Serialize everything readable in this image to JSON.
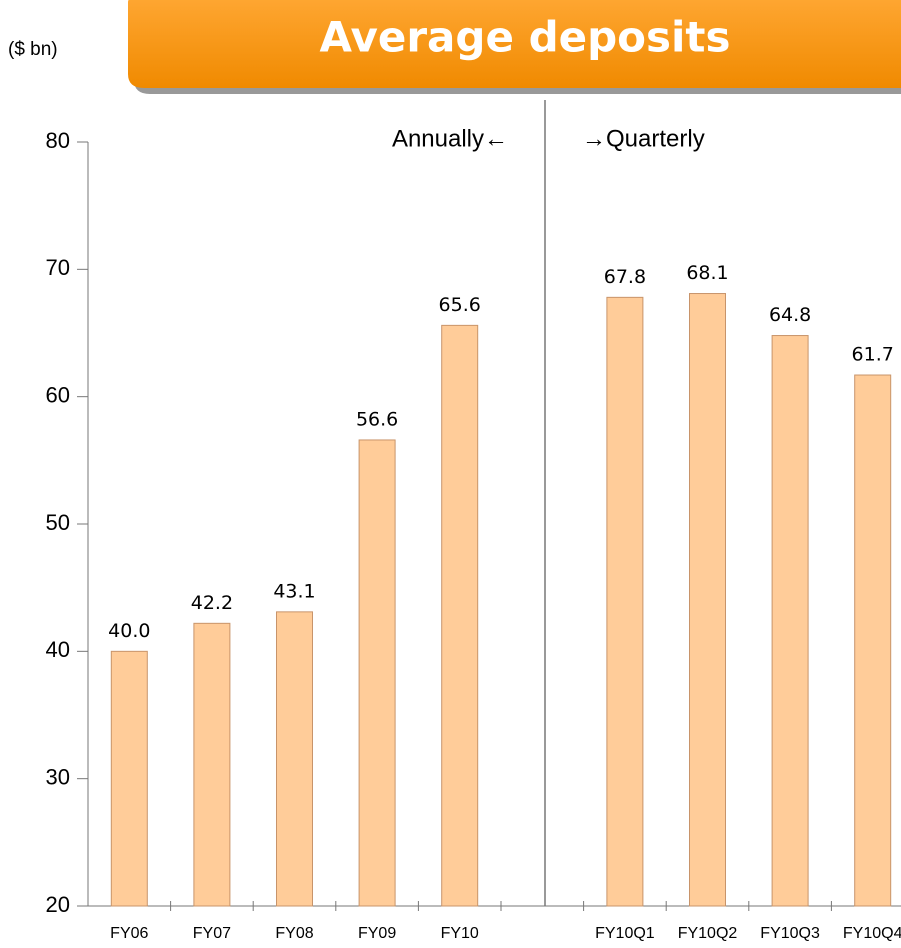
{
  "chart_data": {
    "type": "bar",
    "title": "Average deposits",
    "unit_label": "($ bn)",
    "annotations": [
      "Annually←",
      "→Quarterly"
    ],
    "categories": [
      "FY06",
      "FY07",
      "FY08",
      "FY09",
      "FY10",
      null,
      "FY10Q1",
      "FY10Q2",
      "FY10Q3",
      "FY10Q4"
    ],
    "values": [
      40.0,
      42.2,
      43.1,
      56.6,
      65.6,
      null,
      67.8,
      68.1,
      64.8,
      61.7
    ],
    "value_labels": [
      "40.0",
      "42.2",
      "43.1",
      "56.6",
      "65.6",
      null,
      "67.8",
      "68.1",
      "64.8",
      "61.7"
    ],
    "color": "#ffcc99",
    "ylim": [
      20,
      80
    ],
    "yticks": [
      20,
      30,
      40,
      50,
      60,
      70,
      80
    ],
    "grid": false
  }
}
